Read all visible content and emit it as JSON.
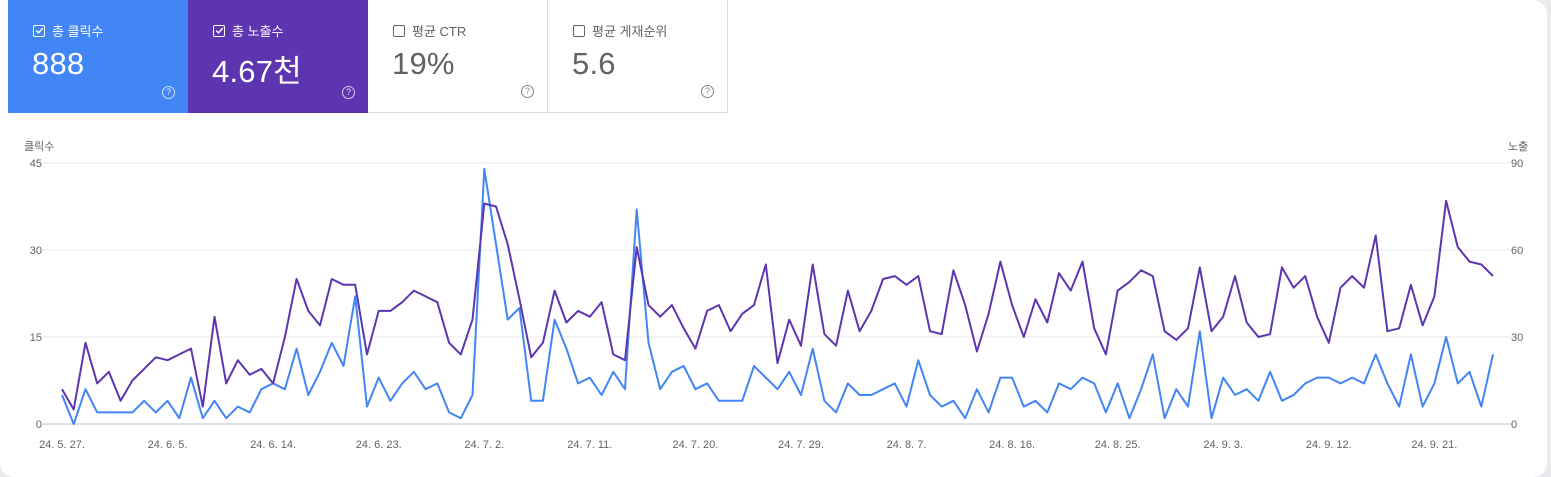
{
  "metrics": [
    {
      "label": "총 클릭수",
      "value": "888",
      "checked": true
    },
    {
      "label": "총 노출수",
      "value": "4.67천",
      "checked": true
    },
    {
      "label": "평균 CTR",
      "value": "19%",
      "checked": false
    },
    {
      "label": "평균 게재순위",
      "value": "5.6",
      "checked": false
    }
  ],
  "help_icon": "question-circle-icon",
  "chart_data": {
    "type": "line",
    "xlabel": "",
    "left_axis_title": "클릭수",
    "right_axis_title": "노출",
    "left_ylim": [
      0,
      45
    ],
    "right_ylim": [
      0,
      90
    ],
    "left_ticks": [
      "0",
      "15",
      "30",
      "45"
    ],
    "right_ticks": [
      "0",
      "30",
      "60",
      "90"
    ],
    "x_ticks": [
      "24. 5. 27.",
      "24. 6. 5.",
      "24. 6. 14.",
      "24. 6. 23.",
      "24. 7. 2.",
      "24. 7. 11.",
      "24. 7. 20.",
      "24. 7. 29.",
      "24. 8. 7.",
      "24. 8. 16.",
      "24. 8. 25.",
      "24. 9. 3.",
      "24. 9. 12.",
      "24. 9. 21."
    ],
    "grid": true,
    "legend": "none",
    "series": [
      {
        "axis": "left",
        "color": "#4285f4",
        "values": [
          5,
          0,
          6,
          2,
          2,
          2,
          2,
          4,
          2,
          4,
          1,
          8,
          1,
          4,
          1,
          3,
          2,
          6,
          7,
          6,
          13,
          5,
          9,
          14,
          10,
          22,
          3,
          8,
          4,
          7,
          9,
          6,
          7,
          2,
          1,
          5,
          44,
          31,
          18,
          20,
          4,
          4,
          18,
          13,
          7,
          8,
          5,
          9,
          6,
          37,
          14,
          6,
          9,
          10,
          6,
          7,
          4,
          4,
          4,
          10,
          8,
          6,
          9,
          5,
          13,
          4,
          2,
          7,
          5,
          5,
          6,
          7,
          3,
          11,
          5,
          3,
          4,
          1,
          6,
          2,
          8,
          8,
          3,
          4,
          2,
          7,
          6,
          8,
          7,
          2,
          7,
          1,
          6,
          12,
          1,
          6,
          3,
          16,
          1,
          8,
          5,
          6,
          4,
          9,
          4,
          5,
          7,
          8,
          8,
          7,
          8,
          7,
          12,
          7,
          3,
          12,
          3,
          7,
          15,
          7,
          9,
          3,
          12
        ]
      },
      {
        "axis": "right",
        "color": "#5e35b1",
        "values": [
          12,
          5,
          28,
          14,
          18,
          8,
          15,
          19,
          23,
          22,
          24,
          26,
          6,
          37,
          14,
          22,
          17,
          19,
          14,
          30,
          50,
          39,
          34,
          50,
          48,
          48,
          24,
          39,
          39,
          42,
          46,
          44,
          42,
          28,
          24,
          36,
          76,
          75,
          62,
          43,
          23,
          28,
          46,
          35,
          39,
          37,
          42,
          24,
          22,
          61,
          41,
          37,
          41,
          33,
          26,
          39,
          41,
          32,
          38,
          41,
          55,
          21,
          36,
          27,
          55,
          31,
          27,
          46,
          32,
          39,
          50,
          51,
          48,
          51,
          32,
          31,
          53,
          41,
          25,
          38,
          56,
          41,
          30,
          43,
          35,
          52,
          46,
          56,
          33,
          24,
          46,
          49,
          53,
          51,
          32,
          29,
          33,
          54,
          32,
          37,
          51,
          35,
          30,
          31,
          54,
          47,
          51,
          37,
          28,
          47,
          51,
          47,
          65,
          32,
          33,
          48,
          34,
          44,
          77,
          61,
          56,
          55,
          51
        ]
      }
    ]
  }
}
